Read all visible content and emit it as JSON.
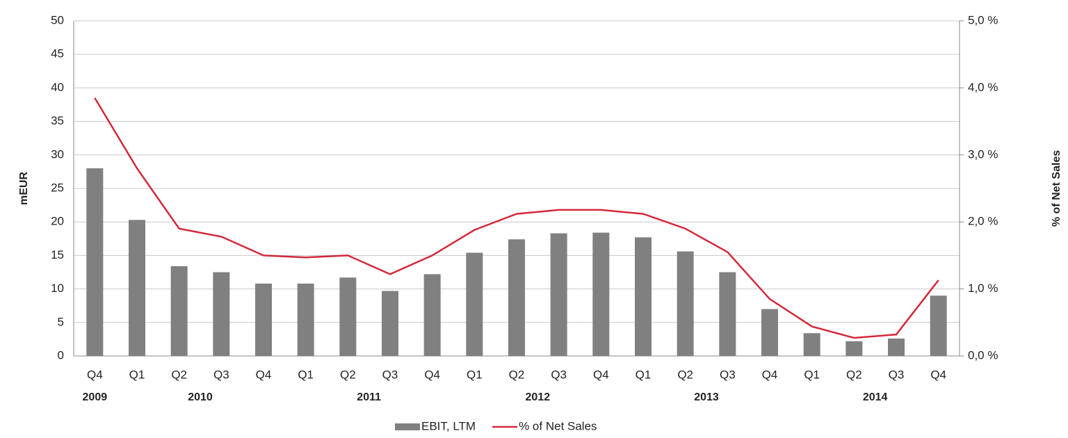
{
  "chart_data": {
    "type": "bar_line",
    "categories": [
      "Q4",
      "Q1",
      "Q2",
      "Q3",
      "Q4",
      "Q1",
      "Q2",
      "Q3",
      "Q4",
      "Q1",
      "Q2",
      "Q3",
      "Q4",
      "Q1",
      "Q2",
      "Q3",
      "Q4",
      "Q1",
      "Q2",
      "Q3",
      "Q4"
    ],
    "category_groups": [
      {
        "label": "2009",
        "count": 1
      },
      {
        "label": "2010",
        "count": 4
      },
      {
        "label": "2011",
        "count": 4
      },
      {
        "label": "2012",
        "count": 4
      },
      {
        "label": "2013",
        "count": 4
      },
      {
        "label": "2014",
        "count": 4
      }
    ],
    "series": [
      {
        "name": "EBIT, LTM",
        "type": "bar",
        "color": "#808080",
        "values": [
          28,
          20.3,
          13.4,
          12.5,
          10.8,
          10.8,
          11.7,
          9.7,
          12.2,
          15.4,
          17.4,
          18.3,
          18.4,
          17.7,
          15.6,
          12.5,
          7,
          3.4,
          2.2,
          2.6,
          9
        ]
      },
      {
        "name": "% of Net Sales",
        "type": "line",
        "axis": "y2",
        "color": "#d3283a",
        "values": [
          3.85,
          2.8,
          1.9,
          1.78,
          1.5,
          1.47,
          1.5,
          1.22,
          1.5,
          1.88,
          2.12,
          2.18,
          2.18,
          2.12,
          1.9,
          1.55,
          0.85,
          0.44,
          0.27,
          0.32,
          1.13
        ]
      }
    ],
    "ylabel": "mEUR",
    "y2label": "% of Net Sales",
    "ylim": [
      0,
      50
    ],
    "yticks": [
      0,
      5,
      10,
      15,
      20,
      25,
      30,
      35,
      40,
      45,
      50
    ],
    "y2lim": [
      0,
      5
    ],
    "y2ticks": [
      {
        "value": 0,
        "label": "0,0 %"
      },
      {
        "value": 1,
        "label": "1,0 %"
      },
      {
        "value": 2,
        "label": "2,0 %"
      },
      {
        "value": 3,
        "label": "3,0 %"
      },
      {
        "value": 4,
        "label": "4,0 %"
      },
      {
        "value": 5,
        "label": "5,0 %"
      }
    ],
    "grid": true,
    "legend": "bottom"
  }
}
